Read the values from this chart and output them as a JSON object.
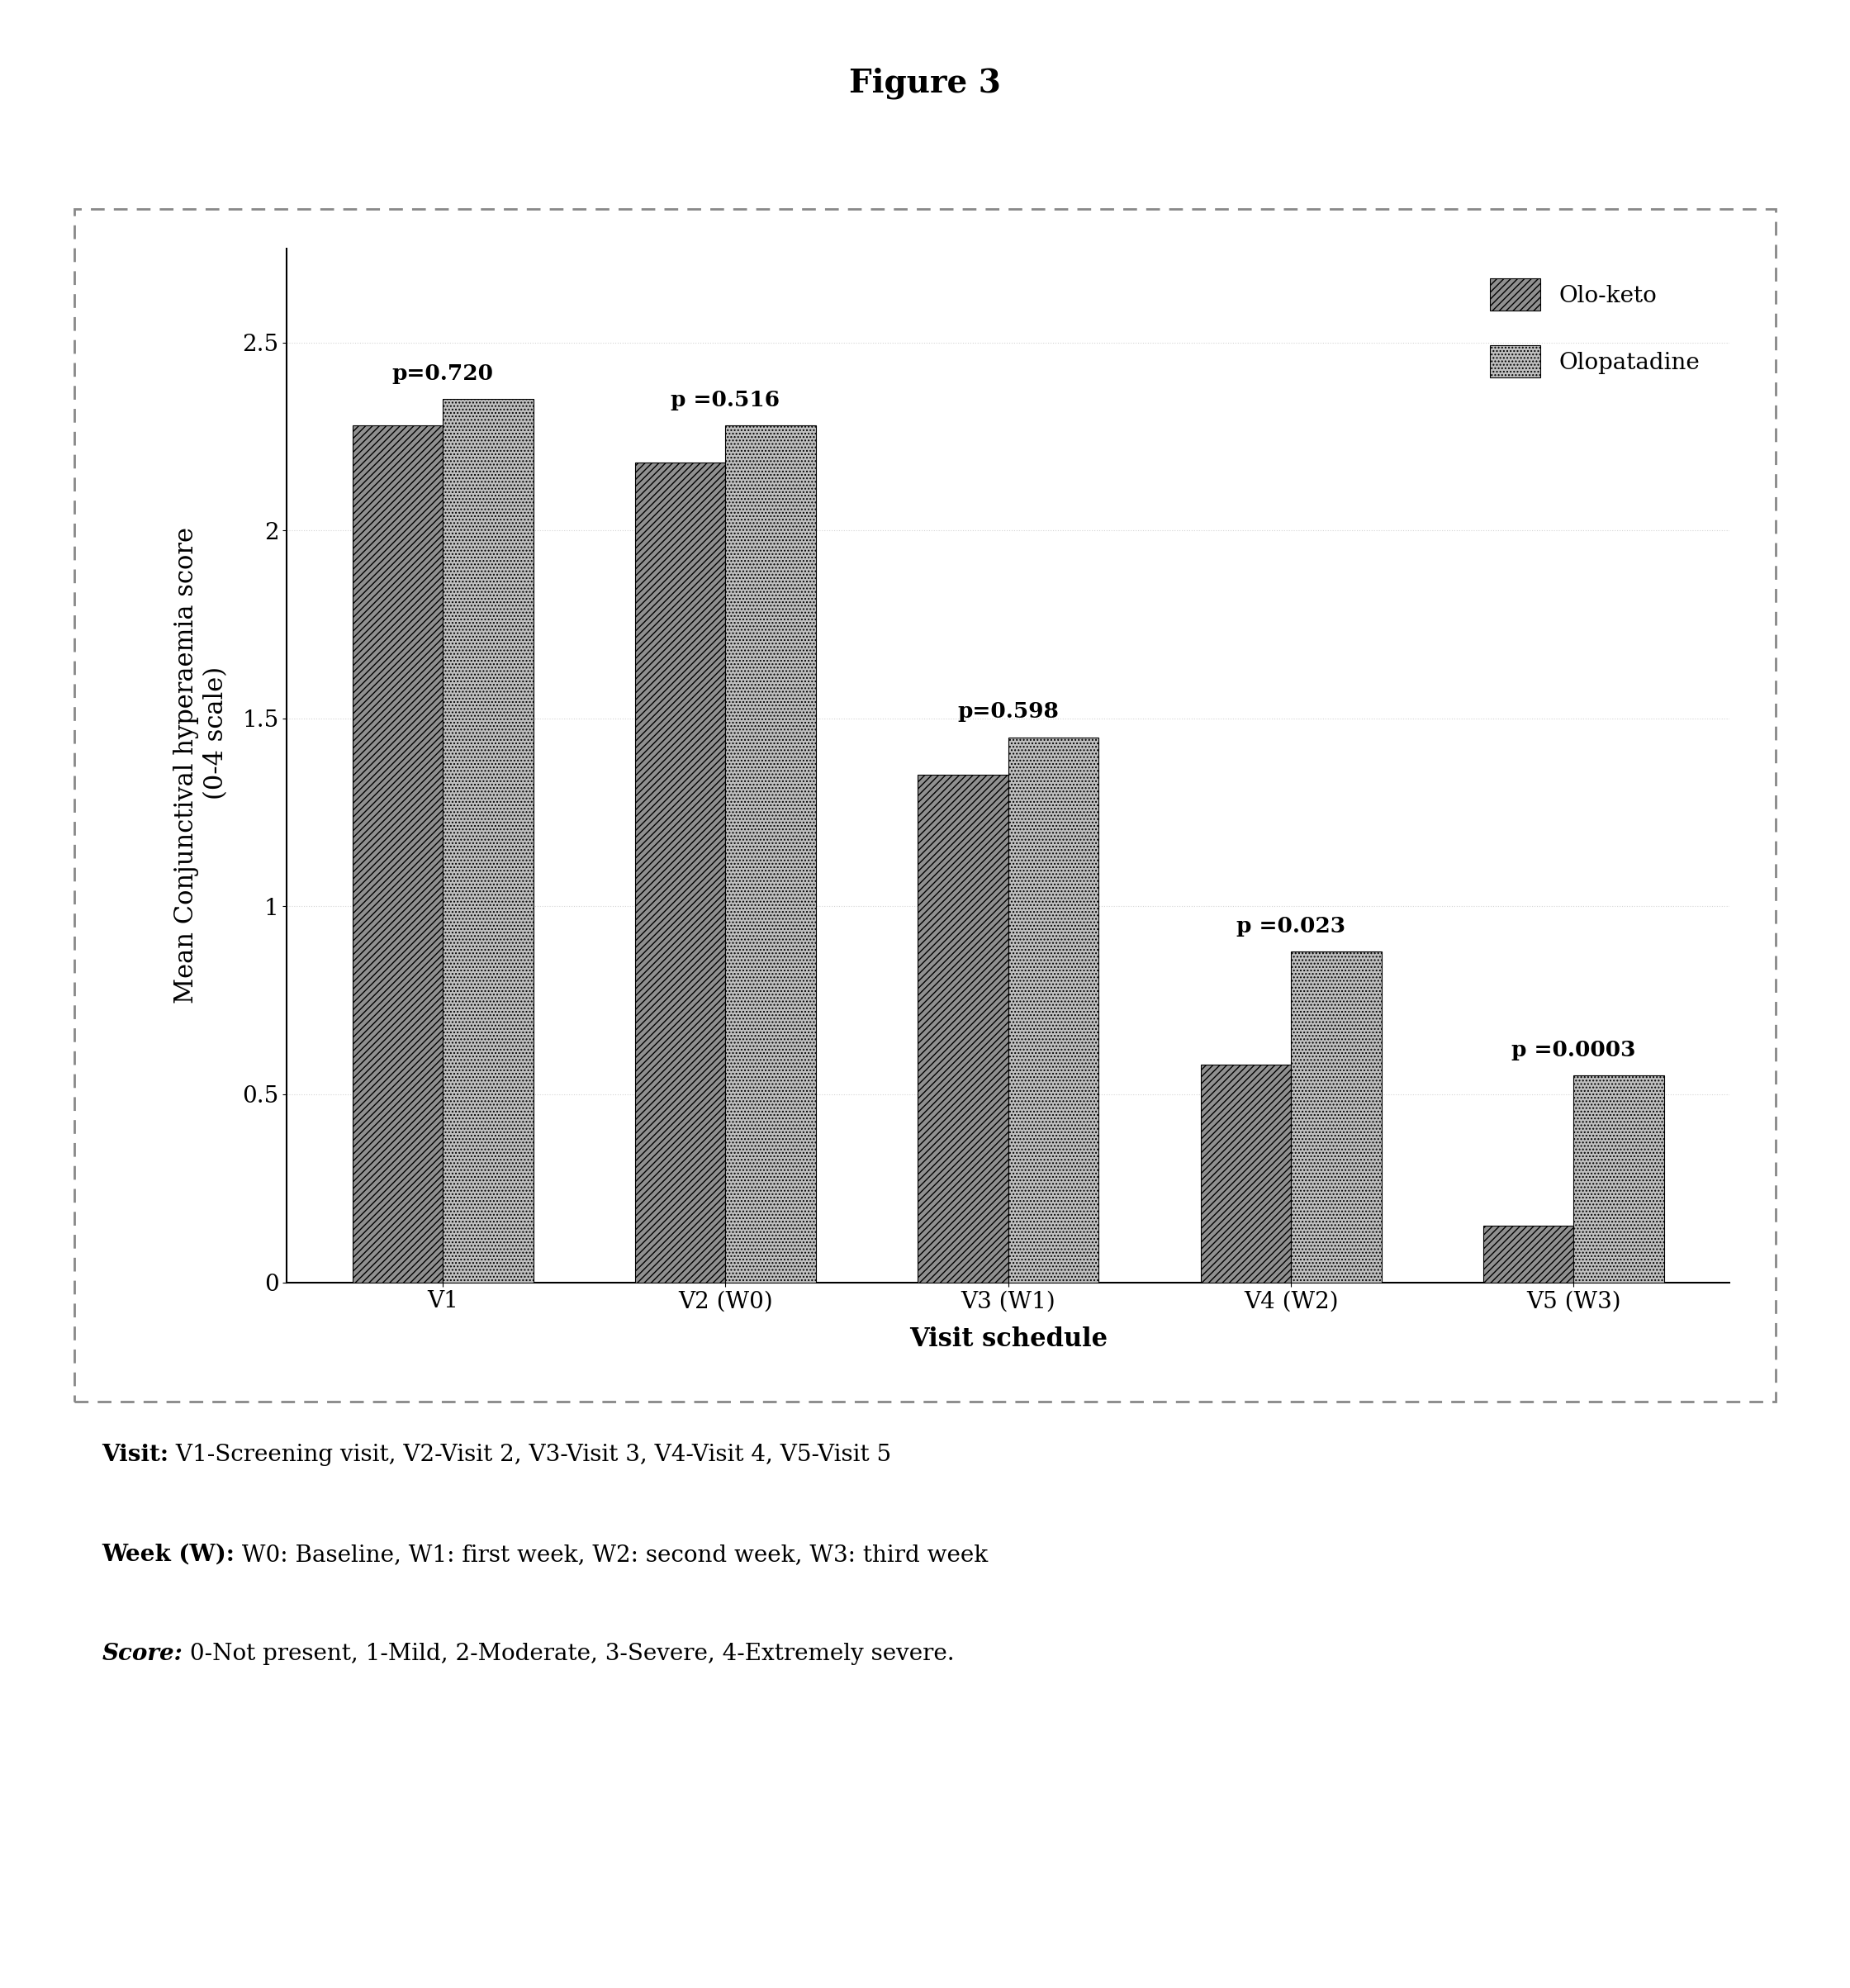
{
  "title": "Figure 3",
  "categories": [
    "V1",
    "V2 (W0)",
    "V3 (W1)",
    "V4 (W2)",
    "V5 (W3)"
  ],
  "olo_keto": [
    2.28,
    2.18,
    1.35,
    0.58,
    0.15
  ],
  "olopatadine": [
    2.35,
    2.28,
    1.45,
    0.88,
    0.55
  ],
  "p_values": [
    "p=0.720",
    "p =0.516",
    "p=0.598",
    "p =0.023",
    "p =0.0003"
  ],
  "ylabel_line1": "Mean Conjunctival hyperaemia score",
  "ylabel_line2": "(0-4 scale)",
  "xlabel": "Visit schedule",
  "ylim": [
    0,
    2.75
  ],
  "yticks": [
    0,
    0.5,
    1,
    1.5,
    2,
    2.5
  ],
  "ytick_labels": [
    "0",
    "0.5",
    "1",
    "1.5",
    "2",
    "2.5"
  ],
  "legend_labels": [
    "Olo-keto",
    "Olopatadine"
  ],
  "bar_color_1": "#909090",
  "bar_color_2": "#c0c0c0",
  "title_fontsize": 28,
  "axis_label_fontsize": 22,
  "tick_fontsize": 20,
  "pvalue_fontsize": 19,
  "legend_fontsize": 20,
  "footnote_fontsize": 20,
  "bar_width": 0.32,
  "footnote_visit_bold": "Visit:",
  "footnote_visit_rest": " V1-Screening visit, V2-Visit 2, V3-Visit 3, V4-Visit 4, V5-Visit 5",
  "footnote_week_bold": "Week (W):",
  "footnote_week_rest": " W0: Baseline, W1: first week, W2: second week, W3: third week",
  "footnote_score_bold": "Score:",
  "footnote_score_rest": " 0-Not present, 1-Mild, 2-Moderate, 3-Severe, 4-Extremely severe."
}
